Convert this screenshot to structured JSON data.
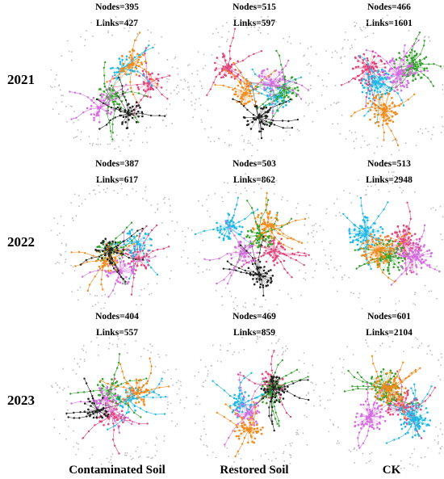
{
  "years": [
    "2021",
    "2022",
    "2023"
  ],
  "columns": [
    "Contaminated Soil",
    "Restored Soil",
    "CK"
  ],
  "node_prefix": "Nodes=",
  "link_prefix": "Links=",
  "networks": [
    {
      "year": "2021",
      "condition": "Contaminated Soil",
      "nodes": "395",
      "links": "427"
    },
    {
      "year": "2021",
      "condition": "Restored Soil",
      "nodes": "515",
      "links": "597"
    },
    {
      "year": "2021",
      "condition": "CK",
      "nodes": "466",
      "links": "1601"
    },
    {
      "year": "2022",
      "condition": "Contaminated Soil",
      "nodes": "387",
      "links": "617"
    },
    {
      "year": "2022",
      "condition": "Restored Soil",
      "nodes": "503",
      "links": "862"
    },
    {
      "year": "2022",
      "condition": "CK",
      "nodes": "513",
      "links": "2948"
    },
    {
      "year": "2023",
      "condition": "Contaminated Soil",
      "nodes": "404",
      "links": "557"
    },
    {
      "year": "2023",
      "condition": "Restored Soil",
      "nodes": "469",
      "links": "859"
    },
    {
      "year": "2023",
      "condition": "CK",
      "nodes": "601",
      "links": "2104"
    }
  ],
  "colors": {
    "module_1": "#e0457b",
    "module_2": "#1fb7e6",
    "module_3": "#33a02c",
    "module_4": "#d56ee0",
    "module_5": "#f28a1d",
    "module_6": "#222222",
    "peripheral": "#bdbdbd"
  }
}
